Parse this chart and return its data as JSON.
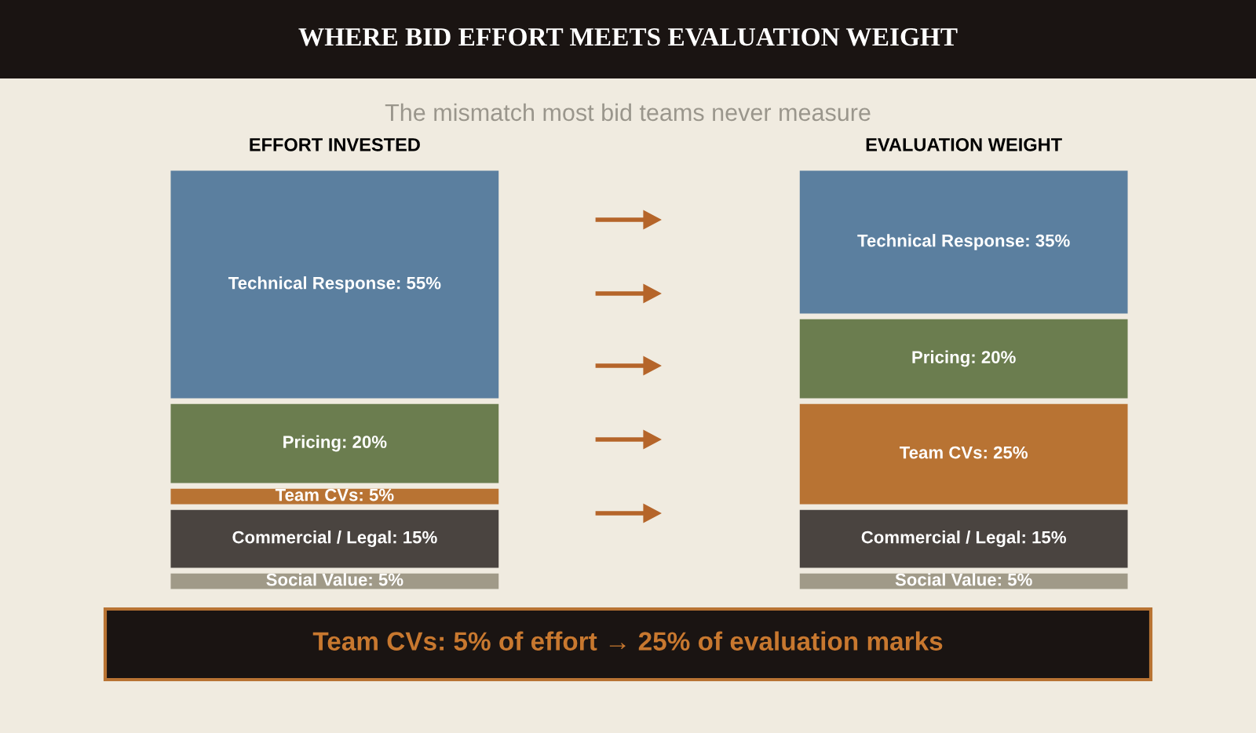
{
  "chart_data": {
    "type": "bar",
    "stacked": true,
    "title": "WHERE BID EFFORT MEETS EVALUATION WEIGHT",
    "subtitle": "The mismatch most bid teams never measure",
    "categories": [
      "EFFORT INVESTED",
      "EVALUATION WEIGHT"
    ],
    "series": [
      {
        "color": "#a09a88",
        "values": [
          5,
          5
        ],
        "value_labels": [
          "Social Value: 5%",
          "Social Value: 5%"
        ]
      },
      {
        "color": "#4a4440",
        "values": [
          15,
          15
        ],
        "value_labels": [
          "Commercial / Legal: 15%",
          "Commercial / Legal: 15%"
        ]
      },
      {
        "color": "#b87333",
        "values": [
          5,
          25
        ],
        "value_labels": [
          "Team CVs: 5%",
          "Team CVs: 25%"
        ]
      },
      {
        "color": "#6b7d4f",
        "values": [
          20,
          20
        ],
        "value_labels": [
          "Pricing: 20%",
          "Pricing: 20%"
        ]
      },
      {
        "color": "#5b7f9f",
        "values": [
          55,
          35
        ],
        "value_labels": [
          "Technical Response: 55%",
          "Technical Response: 35%"
        ]
      }
    ],
    "ylim": [
      0,
      100
    ],
    "tick_labels": "x",
    "grid": false,
    "legend": false,
    "annotations": [
      "Team CVs: 5% of effort → 25% of evaluation marks"
    ]
  }
}
